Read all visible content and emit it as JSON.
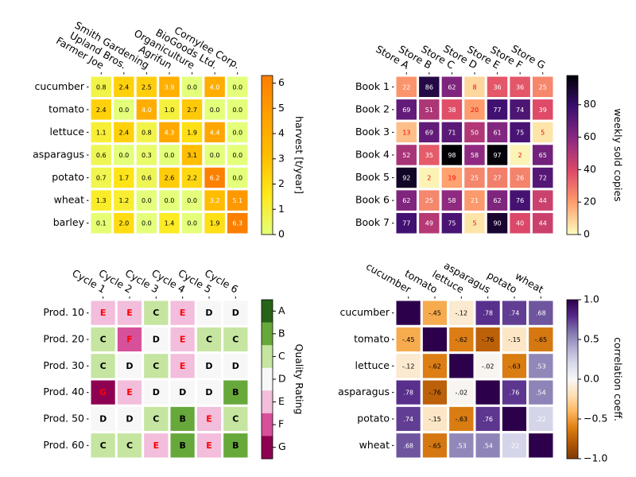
{
  "chart_data": [
    {
      "type": "heatmap",
      "rows": [
        "cucumber",
        "tomato",
        "lettuce",
        "asparagus",
        "potato",
        "wheat",
        "barley"
      ],
      "columns": [
        "Farmer Joe",
        "Upland Bros.",
        "Smith Gardening",
        "Agrifun",
        "Organiculture",
        "BioGoods Ltd.",
        "Cornylee Corp."
      ],
      "values": [
        [
          0.8,
          2.4,
          2.5,
          3.9,
          0.0,
          4.0,
          0.0
        ],
        [
          2.4,
          0.0,
          4.0,
          1.0,
          2.7,
          0.0,
          0.0
        ],
        [
          1.1,
          2.4,
          0.8,
          4.3,
          1.9,
          4.4,
          0.0
        ],
        [
          0.6,
          0.0,
          0.3,
          0.0,
          3.1,
          0.0,
          0.0
        ],
        [
          0.7,
          1.7,
          0.6,
          2.6,
          2.2,
          6.2,
          0.0
        ],
        [
          1.3,
          1.2,
          0.0,
          0.0,
          0.0,
          3.2,
          5.1
        ],
        [
          0.1,
          2.0,
          0.0,
          1.4,
          0.0,
          1.9,
          6.3
        ]
      ],
      "value_labels": [
        [
          "0.8",
          "2.4",
          "2.5",
          "3.9",
          "0.0",
          "4.0",
          "0.0"
        ],
        [
          "2.4",
          "0.0",
          "4.0",
          "1.0",
          "2.7",
          "0.0",
          "0.0"
        ],
        [
          "1.1",
          "2.4",
          "0.8",
          "4.3",
          "1.9",
          "4.4",
          "0.0"
        ],
        [
          "0.6",
          "0.0",
          "0.3",
          "0.0",
          "3.1",
          "0.0",
          "0.0"
        ],
        [
          "0.7",
          "1.7",
          "0.6",
          "2.6",
          "2.2",
          "6.2",
          "0.0"
        ],
        [
          "1.3",
          "1.2",
          "0.0",
          "0.0",
          "0.0",
          "3.2",
          "5.1"
        ],
        [
          "0.1",
          "2.0",
          "0.0",
          "1.4",
          "0.0",
          "1.9",
          "6.3"
        ]
      ],
      "colorbar_label": "harvest [t/year]",
      "clim": [
        0,
        6.3
      ],
      "cticks": [
        0,
        1,
        2,
        3,
        4,
        5,
        6
      ],
      "colormap": [
        "#e4ff7a",
        "#ffe81a",
        "#ffbd00",
        "#ffa000",
        "#fc7f00"
      ],
      "text_colors": [
        "black",
        "white"
      ],
      "text_threshold": 3.15
    },
    {
      "type": "heatmap",
      "rows": [
        "Book 1",
        "Book 2",
        "Book 3",
        "Book 4",
        "Book 5",
        "Book 6",
        "Book 7"
      ],
      "columns": [
        "Store A",
        "Store B",
        "Store C",
        "Store D",
        "Store E",
        "Store F",
        "Store G"
      ],
      "values": [
        [
          22,
          86,
          62,
          8,
          36,
          36,
          25
        ],
        [
          69,
          51,
          38,
          20,
          77,
          74,
          39
        ],
        [
          13,
          69,
          71,
          50,
          61,
          75,
          5
        ],
        [
          52,
          35,
          98,
          58,
          97,
          2,
          65
        ],
        [
          92,
          2,
          19,
          25,
          27,
          26,
          72
        ],
        [
          62,
          25,
          58,
          21,
          62,
          76,
          44
        ],
        [
          77,
          49,
          75,
          5,
          90,
          40,
          44
        ]
      ],
      "colorbar_label": "weekly sold copies",
      "clim": [
        0,
        98
      ],
      "cticks": [
        0,
        20,
        40,
        60,
        80
      ],
      "colormap": [
        "#fcfdbf",
        "#fe9f6d",
        "#de4968",
        "#8c2981",
        "#3b0f70",
        "#000004"
      ],
      "text_colors": [
        "red",
        "white"
      ],
      "text_threshold": 20
    },
    {
      "type": "categorical_heatmap",
      "rows": [
        "Prod. 10",
        "Prod. 20",
        "Prod. 30",
        "Prod. 40",
        "Prod. 50",
        "Prod. 60"
      ],
      "columns": [
        "Cycle 1",
        "Cycle 2",
        "Cycle 3",
        "Cycle 4",
        "Cycle 5",
        "Cycle 6"
      ],
      "values": [
        [
          "E",
          "E",
          "C",
          "E",
          "D",
          "D"
        ],
        [
          "C",
          "F",
          "D",
          "E",
          "C",
          "C"
        ],
        [
          "C",
          "D",
          "C",
          "E",
          "D",
          "D"
        ],
        [
          "G",
          "E",
          "D",
          "D",
          "D",
          "B"
        ],
        [
          "D",
          "D",
          "C",
          "B",
          "E",
          "C"
        ],
        [
          "C",
          "C",
          "E",
          "B",
          "E",
          "B"
        ]
      ],
      "colorbar_label": "Quality Rating",
      "levels": [
        "A",
        "B",
        "C",
        "D",
        "E",
        "F",
        "G"
      ],
      "level_colors": [
        "#276419",
        "#67a83b",
        "#c5e5a0",
        "#f7f7f7",
        "#f3bddc",
        "#d6509a",
        "#8e0152"
      ],
      "level_text_colors": [
        "black",
        "black",
        "black",
        "black",
        "red",
        "red",
        "red"
      ]
    },
    {
      "type": "heatmap",
      "rows": [
        "cucumber",
        "tomato",
        "lettuce",
        "asparagus",
        "potato",
        "wheat"
      ],
      "columns": [
        "cucumber",
        "tomato",
        "lettuce",
        "asparagus",
        "potato",
        "wheat"
      ],
      "values": [
        [
          1,
          -0.45,
          -0.12,
          0.78,
          0.74,
          0.68
        ],
        [
          -0.45,
          1,
          -0.62,
          -0.76,
          -0.15,
          -0.65
        ],
        [
          -0.12,
          -0.62,
          1,
          -0.02,
          -0.63,
          0.53
        ],
        [
          0.78,
          -0.76,
          -0.02,
          1,
          0.76,
          0.54
        ],
        [
          0.74,
          -0.15,
          -0.63,
          0.76,
          1,
          0.22
        ],
        [
          0.68,
          -0.65,
          0.53,
          0.54,
          0.22,
          1
        ]
      ],
      "value_labels": [
        [
          null,
          "-.45",
          "-.12",
          ".78",
          ".74",
          ".68"
        ],
        [
          "-.45",
          null,
          "-.62",
          "-.76",
          "-.15",
          "-.65"
        ],
        [
          "-.12",
          "-.62",
          null,
          "-.02",
          "-.63",
          ".53"
        ],
        [
          ".78",
          "-.76",
          "-.02",
          null,
          ".76",
          ".54"
        ],
        [
          ".74",
          "-.15",
          "-.63",
          ".76",
          null,
          ".22"
        ],
        [
          ".68",
          "-.65",
          ".53",
          ".54",
          ".22",
          null
        ]
      ],
      "colorbar_label": "correlation coeff.",
      "clim": [
        -1,
        1
      ],
      "cticks": [
        {
          "value": -1,
          "label": "−1.0"
        },
        {
          "value": -0.5,
          "label": "−0.5"
        },
        {
          "value": 0,
          "label": "0.0"
        },
        {
          "value": 0.5,
          "label": "0.5"
        },
        {
          "value": 1,
          "label": "1.0"
        }
      ],
      "colormap": [
        "#7f3b08",
        "#b35806",
        "#e08214",
        "#fdb863",
        "#fee0b6",
        "#f7f7f7",
        "#d8daeb",
        "#b2abd2",
        "#8073ac",
        "#542788",
        "#2d004b"
      ],
      "text_colors": [
        "black",
        "white"
      ],
      "text_threshold": 0
    }
  ]
}
